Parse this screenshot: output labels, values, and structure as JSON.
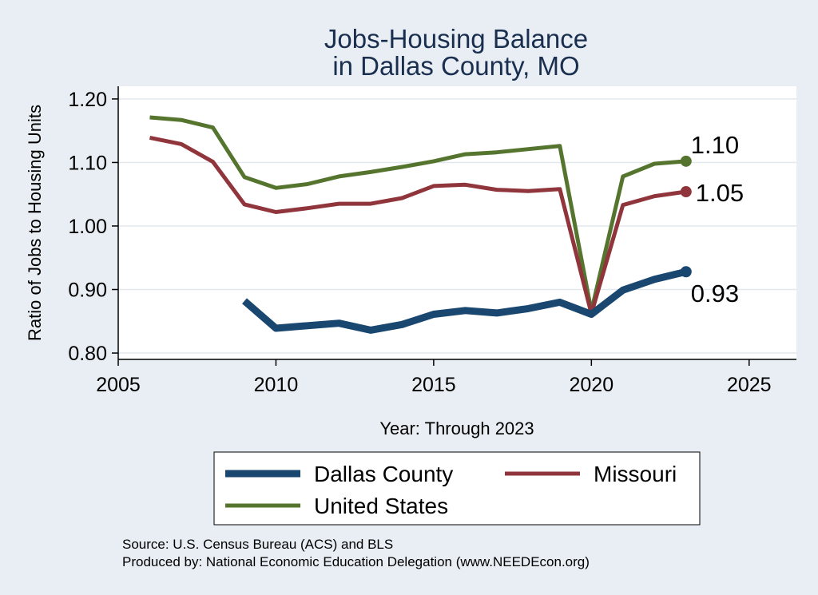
{
  "chart_data": {
    "type": "line",
    "title": [
      "Jobs-Housing Balance",
      "in Dallas County, MO"
    ],
    "xlabel": "Year: Through 2023",
    "ylabel": "Ratio of Jobs to Housing Units",
    "xlim": [
      2005,
      2026.5
    ],
    "ylim": [
      0.79,
      1.22
    ],
    "x_ticks": [
      2005,
      2010,
      2015,
      2020,
      2025
    ],
    "y_ticks": [
      0.8,
      0.9,
      1.0,
      1.1,
      1.2
    ],
    "y_tick_labels": [
      "0.80",
      "0.90",
      "1.00",
      "1.10",
      "1.20"
    ],
    "grid": "horizontal",
    "series": [
      {
        "name": "Dallas County",
        "color": "#1a476f",
        "x": [
          2009,
          2010,
          2011,
          2012,
          2013,
          2014,
          2015,
          2016,
          2017,
          2018,
          2019,
          2020,
          2021,
          2022,
          2023
        ],
        "values": [
          0.882,
          0.839,
          0.843,
          0.847,
          0.836,
          0.845,
          0.861,
          0.867,
          0.863,
          0.87,
          0.88,
          0.861,
          0.899,
          0.916,
          0.928
        ],
        "end_label": "0.93"
      },
      {
        "name": "Missouri",
        "color": "#90353b",
        "x": [
          2006,
          2007,
          2008,
          2009,
          2010,
          2011,
          2012,
          2013,
          2014,
          2015,
          2016,
          2017,
          2018,
          2019,
          2020,
          2021,
          2022,
          2023
        ],
        "values": [
          1.139,
          1.129,
          1.101,
          1.034,
          1.022,
          1.028,
          1.035,
          1.035,
          1.044,
          1.063,
          1.065,
          1.057,
          1.055,
          1.058,
          0.862,
          1.033,
          1.047,
          1.054
        ],
        "end_label": "1.05"
      },
      {
        "name": "United States",
        "color": "#55752f",
        "x": [
          2006,
          2007,
          2008,
          2009,
          2010,
          2011,
          2012,
          2013,
          2014,
          2015,
          2016,
          2017,
          2018,
          2019,
          2020,
          2021,
          2022,
          2023
        ],
        "values": [
          1.171,
          1.167,
          1.155,
          1.077,
          1.06,
          1.066,
          1.078,
          1.085,
          1.093,
          1.102,
          1.113,
          1.116,
          1.121,
          1.126,
          0.866,
          1.078,
          1.098,
          1.102
        ],
        "end_label": "1.10"
      }
    ],
    "legend_position": "bottom"
  },
  "source_note": "Source: U.S. Census Bureau (ACS) and BLS",
  "producer_note": "Produced by: National Economic Education Delegation (www.NEEDEcon.org)"
}
